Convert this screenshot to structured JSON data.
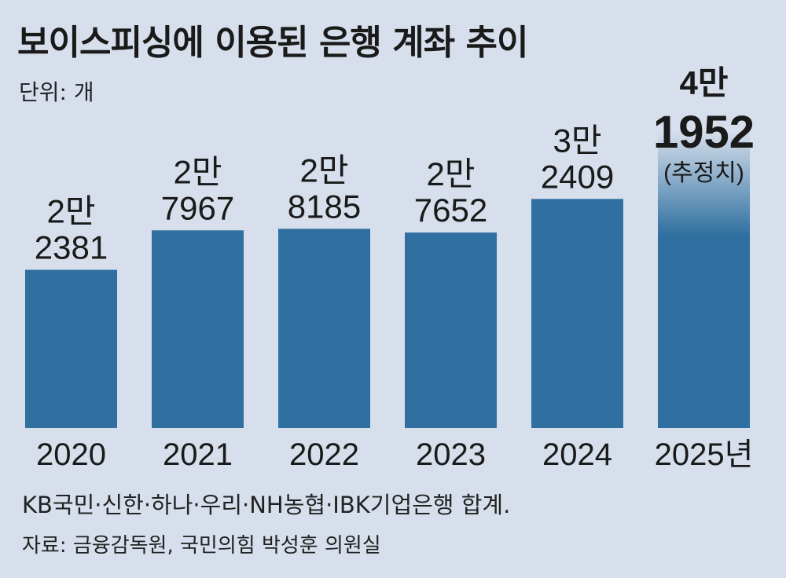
{
  "chart_data": {
    "type": "bar",
    "title": "보이스피싱에 이용된 은행 계좌 추이",
    "unit_label": "단위: 개",
    "categories": [
      "2020",
      "2021",
      "2022",
      "2023",
      "2024",
      "2025년"
    ],
    "values": [
      22381,
      27967,
      28185,
      27652,
      32409,
      41952
    ],
    "data_labels": [
      [
        "2만",
        "2381"
      ],
      [
        "2만",
        "7967"
      ],
      [
        "2만",
        "8185"
      ],
      [
        "2만",
        "7652"
      ],
      [
        "3만",
        "2409"
      ],
      [
        "4만",
        "1952",
        "(추정치)"
      ]
    ],
    "estimated_index": 5,
    "ylim": [
      0,
      45000
    ],
    "grid": false,
    "colors": {
      "bar": "#3070a0",
      "estimate_top": "#d6dfeb",
      "background": "#d6dfeb"
    }
  },
  "note": "KB국민·신한·하나·우리·NH농협·IBK기업은행 합계.",
  "source": "자료: 금융감독원, 국민의힘 박성훈 의원실"
}
